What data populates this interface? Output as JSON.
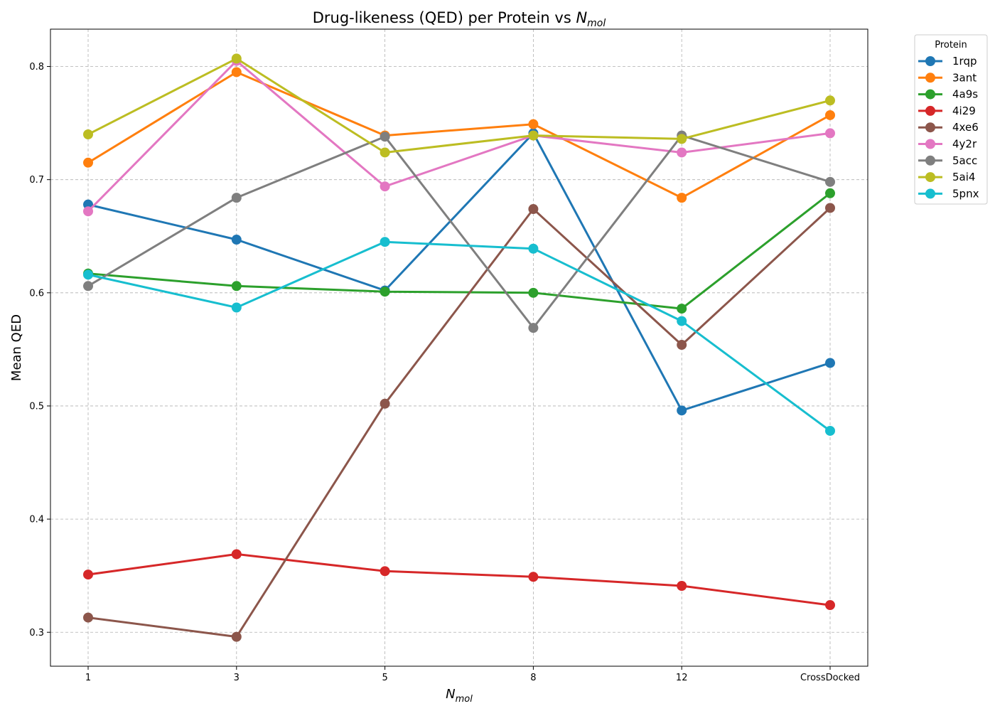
{
  "chart_data": {
    "type": "line",
    "title": "Drug-likeness (QED) per Protein vs ",
    "title_symbol": "N",
    "title_subscript": "mol",
    "xlabel_symbol": "N",
    "xlabel_subscript": "mol",
    "ylabel": "Mean QED",
    "categories": [
      "1",
      "3",
      "5",
      "8",
      "12",
      "CrossDocked"
    ],
    "y_ticks": [
      "0.3",
      "0.4",
      "0.5",
      "0.6",
      "0.7",
      "0.8"
    ],
    "ylim": [
      0.27,
      0.833
    ],
    "grid": true,
    "legend_title": "Protein",
    "legend_position": "outside-top-right",
    "series": [
      {
        "name": "1rqp",
        "color": "#1f77b4",
        "values": [
          0.678,
          0.647,
          0.602,
          0.741,
          0.496,
          0.538
        ]
      },
      {
        "name": "3ant",
        "color": "#ff7f0e",
        "values": [
          0.715,
          0.795,
          0.739,
          0.749,
          0.684,
          0.757
        ]
      },
      {
        "name": "4a9s",
        "color": "#2ca02c",
        "values": [
          0.617,
          0.606,
          0.601,
          0.6,
          0.586,
          0.688
        ]
      },
      {
        "name": "4i29",
        "color": "#d62728",
        "values": [
          0.351,
          0.369,
          0.354,
          0.349,
          0.341,
          0.324
        ]
      },
      {
        "name": "4xe6",
        "color": "#8c564b",
        "values": [
          0.313,
          0.296,
          0.502,
          0.674,
          0.554,
          0.675
        ]
      },
      {
        "name": "4y2r",
        "color": "#e377c2",
        "values": [
          0.672,
          0.805,
          0.694,
          0.739,
          0.724,
          0.741
        ]
      },
      {
        "name": "5acc",
        "color": "#7f7f7f",
        "values": [
          0.606,
          0.684,
          0.738,
          0.569,
          0.739,
          0.698
        ]
      },
      {
        "name": "5ai4",
        "color": "#bcbd22",
        "values": [
          0.74,
          0.807,
          0.724,
          0.739,
          0.736,
          0.77
        ]
      },
      {
        "name": "5pnx",
        "color": "#17becf",
        "values": [
          0.616,
          0.587,
          0.645,
          0.639,
          0.575,
          0.478
        ]
      }
    ]
  }
}
